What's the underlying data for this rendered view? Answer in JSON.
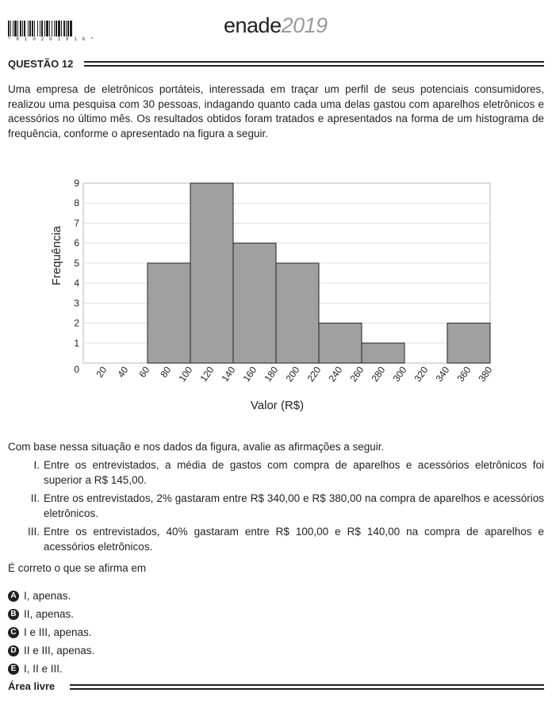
{
  "header": {
    "barcode_text": "* R 1 0 2 0 1 9 1 6 *",
    "brand_main": "enade",
    "brand_year": "2019"
  },
  "question": {
    "label": "QUESTÃO 12",
    "stem": "Uma empresa de eletrônicos portáteis, interessada em traçar um perfil de seus potenciais consumidores, realizou uma pesquisa com 30 pessoas, indagando quanto cada uma delas gastou com aparelhos eletrônicos e acessórios no último mês. Os resultados obtidos foram tratados e apresentados na forma de um histograma de frequência, conforme o apresentado na figura a seguir.",
    "after_text": "Com base nessa situação e nos dados da figura, avalie as afirmações a seguir.",
    "statements": [
      {
        "num": "I.",
        "text": "Entre os entrevistados, a média de gastos com compra de aparelhos e acessórios eletrônicos foi superior a R$ 145,00."
      },
      {
        "num": "II.",
        "text": "Entre os entrevistados, 2% gastaram entre R$ 340,00 e R$ 380,00 na compra de aparelhos e acessórios eletrônicos."
      },
      {
        "num": "III.",
        "text": "Entre os entrevistados, 40% gastaram entre R$ 100,00 e R$ 140,00 na compra de aparelhos e acessórios eletrônicos."
      }
    ],
    "prompt": "É correto o que se afirma em",
    "options": [
      {
        "letter": "A",
        "text": "I, apenas."
      },
      {
        "letter": "B",
        "text": "II, apenas."
      },
      {
        "letter": "C",
        "text": "I e III, apenas."
      },
      {
        "letter": "D",
        "text": "II e III, apenas."
      },
      {
        "letter": "E",
        "text": "I, II e III."
      }
    ],
    "free_area_label": "Área livre"
  },
  "chart_data": {
    "type": "bar",
    "xlabel": "Valor (R$)",
    "ylabel": "Frequência",
    "x_ticks": [
      20,
      40,
      60,
      80,
      100,
      120,
      140,
      160,
      180,
      200,
      220,
      240,
      260,
      280,
      300,
      320,
      340,
      360,
      380
    ],
    "y_ticks": [
      0,
      1,
      2,
      3,
      4,
      5,
      6,
      7,
      8,
      9
    ],
    "xlim": [
      0,
      380
    ],
    "ylim": [
      0,
      9
    ],
    "bins": [
      {
        "from": 60,
        "to": 100,
        "value": 5
      },
      {
        "from": 100,
        "to": 140,
        "value": 9
      },
      {
        "from": 140,
        "to": 180,
        "value": 6
      },
      {
        "from": 180,
        "to": 220,
        "value": 5
      },
      {
        "from": 220,
        "to": 260,
        "value": 2
      },
      {
        "from": 260,
        "to": 300,
        "value": 1
      },
      {
        "from": 340,
        "to": 380,
        "value": 2
      }
    ],
    "bar_color": "#a0a0a0",
    "grid": true
  }
}
